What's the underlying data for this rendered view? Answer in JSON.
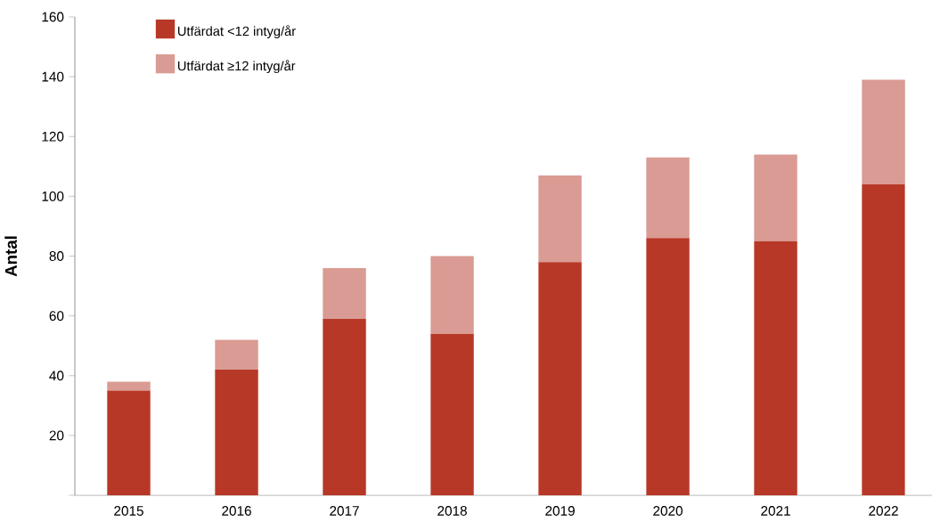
{
  "chart_data": {
    "type": "bar",
    "stacked": true,
    "ylabel": "Antal",
    "categories": [
      "2015",
      "2016",
      "2017",
      "2018",
      "2019",
      "2020",
      "2021",
      "2022"
    ],
    "series": [
      {
        "name": "Utfärdat <12 intyg/år",
        "color": "#b83827",
        "values": [
          35,
          42,
          59,
          54,
          78,
          86,
          85,
          104
        ]
      },
      {
        "name": "Utfärdat ≥12 intyg/år",
        "color": "#d99b93",
        "values": [
          3,
          10,
          17,
          26,
          29,
          27,
          29,
          35
        ]
      }
    ],
    "ylim": [
      0,
      160
    ],
    "yticks": [
      {
        "value": 0,
        "label": null
      },
      20,
      40,
      60,
      80,
      100,
      120,
      140,
      160
    ],
    "legend": "top left",
    "grid": false
  }
}
